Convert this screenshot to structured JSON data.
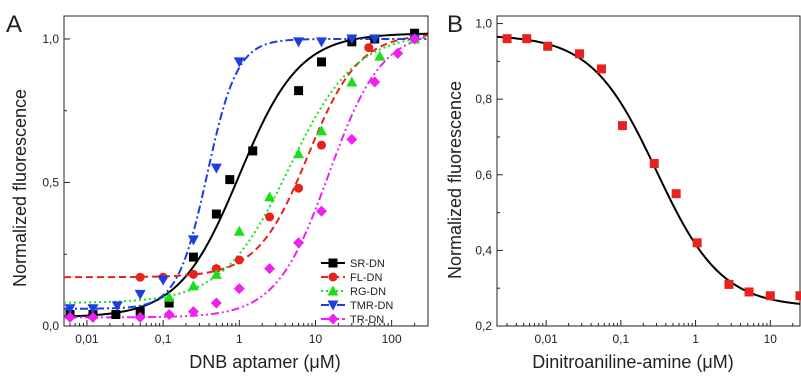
{
  "chart_data": [
    {
      "panel_label": "A",
      "type": "scatter",
      "xlabel": "DNB aptamer (μM)",
      "ylabel": "Normalized fluorescence",
      "xscale": "log",
      "xlim": [
        0.005,
        300
      ],
      "ylim": [
        0,
        1.08
      ],
      "x_ticks": [
        0.01,
        0.1,
        1,
        10,
        100
      ],
      "x_tick_labels": [
        "0,01",
        "0,1",
        "1",
        "10",
        "100"
      ],
      "y_ticks": [
        0,
        0.5,
        1.0
      ],
      "y_tick_labels": [
        "0,0",
        "0,5",
        "1,0"
      ],
      "legend_position": "bottom-right",
      "grid": false,
      "series": [
        {
          "name": "SR-DN",
          "marker": "square",
          "color": "#000000",
          "fit_style": "solid",
          "x": [
            0.006,
            0.012,
            0.024,
            0.05,
            0.12,
            0.25,
            0.5,
            0.75,
            1.5,
            6,
            12,
            30,
            60,
            200
          ],
          "y": [
            0.04,
            0.04,
            0.04,
            0.05,
            0.08,
            0.24,
            0.39,
            0.51,
            0.61,
            0.82,
            0.92,
            0.99,
            1.0,
            1.02
          ],
          "fit": {
            "bottom": 0.03,
            "top": 1.02,
            "ec50": 1.0,
            "hill": 1.1
          }
        },
        {
          "name": "FL-DN",
          "marker": "circle",
          "color": "#e8221c",
          "fit_style": "dashed",
          "x": [
            0.05,
            0.1,
            0.25,
            0.5,
            1.0,
            2.5,
            6,
            12,
            50,
            200
          ],
          "y": [
            0.17,
            0.17,
            0.18,
            0.2,
            0.23,
            0.38,
            0.48,
            0.63,
            0.97,
            1.0
          ],
          "fit": {
            "bottom": 0.17,
            "top": 1.02,
            "ec50": 8,
            "hill": 1.3
          }
        },
        {
          "name": "RG-DN",
          "marker": "triangle-up",
          "color": "#18e018",
          "fit_style": "dotted",
          "x": [
            0.12,
            0.25,
            0.5,
            1.0,
            2.5,
            6,
            12,
            30,
            70,
            200
          ],
          "y": [
            0.1,
            0.14,
            0.18,
            0.33,
            0.45,
            0.6,
            0.68,
            0.85,
            0.94,
            1.0
          ],
          "fit": {
            "bottom": 0.08,
            "top": 1.02,
            "ec50": 4.5,
            "hill": 1.0
          }
        },
        {
          "name": "TMR-DN",
          "marker": "triangle-down",
          "color": "#1c3fe0",
          "fit_style": "dashdot",
          "x": [
            0.006,
            0.012,
            0.025,
            0.05,
            0.1,
            0.25,
            0.5,
            1.0,
            6,
            12,
            30,
            60,
            200
          ],
          "y": [
            0.06,
            0.06,
            0.07,
            0.11,
            0.16,
            0.3,
            0.55,
            0.92,
            0.99,
            0.99,
            1.0,
            1.0,
            1.0
          ],
          "fit": {
            "bottom": 0.06,
            "top": 1.0,
            "ec50": 0.38,
            "hill": 2.2
          }
        },
        {
          "name": "TR-DN",
          "marker": "diamond",
          "color": "#f020f0",
          "fit_style": "dashdotdot",
          "x": [
            0.006,
            0.012,
            0.05,
            0.12,
            0.25,
            0.5,
            1.0,
            2.5,
            6,
            12,
            30,
            60,
            120,
            200
          ],
          "y": [
            0.03,
            0.03,
            0.03,
            0.04,
            0.05,
            0.08,
            0.13,
            0.2,
            0.29,
            0.4,
            0.65,
            0.85,
            0.95,
            1.0
          ],
          "fit": {
            "bottom": 0.03,
            "top": 1.03,
            "ec50": 15,
            "hill": 1.25
          }
        }
      ]
    },
    {
      "panel_label": "B",
      "type": "scatter",
      "xlabel": "Dinitroaniline-amine (μM)",
      "ylabel": "Normalized fluorescence",
      "xscale": "log",
      "xlim": [
        0.0022,
        25
      ],
      "ylim": [
        0.2,
        1.02
      ],
      "x_ticks": [
        0.01,
        0.1,
        1,
        10
      ],
      "x_tick_labels": [
        "0,01",
        "0,1",
        "1",
        "10"
      ],
      "y_ticks": [
        0.2,
        0.4,
        0.6,
        0.8,
        1.0
      ],
      "y_tick_labels": [
        "0,2",
        "0,4",
        "0,6",
        "0,8",
        "1,0"
      ],
      "grid": false,
      "series": [
        {
          "marker": "square",
          "color": "#e8221c",
          "fit_color": "#000000",
          "x": [
            0.003,
            0.0055,
            0.0105,
            0.028,
            0.055,
            0.105,
            0.28,
            0.55,
            1.05,
            2.8,
            5.2,
            10,
            25
          ],
          "y": [
            0.96,
            0.96,
            0.94,
            0.92,
            0.88,
            0.73,
            0.63,
            0.55,
            0.42,
            0.31,
            0.29,
            0.28,
            0.28
          ],
          "fit": {
            "top": 0.97,
            "bottom": 0.25,
            "ic50": 0.3,
            "hill": 1.0
          }
        }
      ]
    }
  ]
}
